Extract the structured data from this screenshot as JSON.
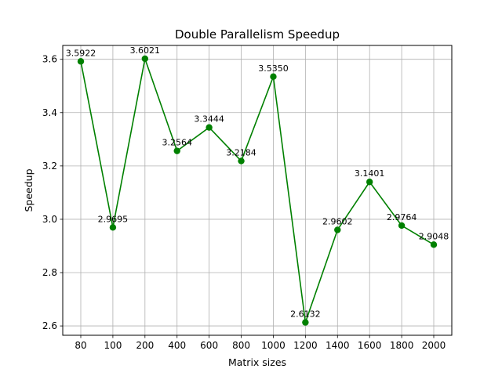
{
  "chart_data": {
    "type": "line",
    "title": "Double Parallelism Speedup",
    "xlabel": "Matrix sizes",
    "ylabel": "Speedup",
    "categories": [
      "80",
      "100",
      "200",
      "400",
      "600",
      "800",
      "1000",
      "1200",
      "1400",
      "1600",
      "1800",
      "2000"
    ],
    "series": [
      {
        "values": [
          3.5922,
          2.9695,
          3.6021,
          3.2564,
          3.3444,
          3.2184,
          3.535,
          2.6132,
          2.9602,
          3.1401,
          2.9764,
          2.9048
        ],
        "data_labels": [
          "3.5922",
          "2.9695",
          "3.6021",
          "3.2564",
          "3.3444",
          "3.2184",
          "3.5350",
          "2.6132",
          "2.9602",
          "3.1401",
          "2.9764",
          "2.9048"
        ],
        "color": "#008000",
        "marker": "circle"
      }
    ],
    "ylim": [
      2.565,
      3.652
    ],
    "y_ticks": [
      "2.6",
      "2.8",
      "3.0",
      "3.2",
      "3.4",
      "3.6"
    ],
    "grid": true,
    "legend": "none"
  }
}
